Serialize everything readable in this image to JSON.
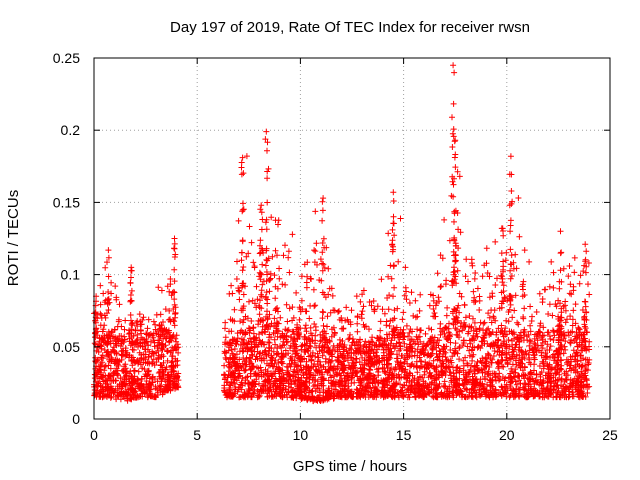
{
  "chart_data": {
    "type": "scatter",
    "title": "Day 197 of 2019, Rate Of TEC Index for receiver rwsn",
    "xlabel": "GPS time / hours",
    "ylabel": "ROTI / TECUs",
    "xlim": [
      0,
      25
    ],
    "ylim": [
      0,
      0.25
    ],
    "xticks": [
      0,
      5,
      10,
      15,
      20,
      25
    ],
    "xtick_labels": [
      "0",
      "5",
      "10",
      "15",
      "20",
      "25"
    ],
    "yticks": [
      0,
      0.05,
      0.1,
      0.15,
      0.2,
      0.25
    ],
    "ytick_labels": [
      "0",
      "0.05",
      "0.1",
      "0.15",
      "0.2",
      "0.25"
    ],
    "grid": true,
    "marker": "+",
    "color": "#ff0000",
    "coverage_hours": [
      [
        0.0,
        4.1
      ],
      [
        6.3,
        24.0
      ]
    ],
    "envelope": [
      {
        "x": 0.0,
        "base_low": 0.015,
        "base_high": 0.05,
        "peak": 0.085
      },
      {
        "x": 0.7,
        "base_low": 0.015,
        "base_high": 0.06,
        "peak": 0.117
      },
      {
        "x": 1.5,
        "base_low": 0.012,
        "base_high": 0.05,
        "peak": 0.08
      },
      {
        "x": 2.2,
        "base_low": 0.015,
        "base_high": 0.055,
        "peak": 0.08
      },
      {
        "x": 3.0,
        "base_low": 0.015,
        "base_high": 0.06,
        "peak": 0.09
      },
      {
        "x": 3.8,
        "base_low": 0.02,
        "base_high": 0.06,
        "peak": 0.125
      },
      {
        "x": 4.1,
        "base_low": 0.02,
        "base_high": 0.05,
        "peak": 0.08
      },
      {
        "x": 6.3,
        "base_low": 0.015,
        "base_high": 0.05,
        "peak": 0.08
      },
      {
        "x": 7.3,
        "base_low": 0.015,
        "base_high": 0.06,
        "peak": 0.18
      },
      {
        "x": 8.3,
        "base_low": 0.015,
        "base_high": 0.07,
        "peak": 0.2
      },
      {
        "x": 9.5,
        "base_low": 0.015,
        "base_high": 0.06,
        "peak": 0.145
      },
      {
        "x": 10.8,
        "base_low": 0.012,
        "base_high": 0.06,
        "peak": 0.15
      },
      {
        "x": 12.0,
        "base_low": 0.015,
        "base_high": 0.05,
        "peak": 0.08
      },
      {
        "x": 13.5,
        "base_low": 0.015,
        "base_high": 0.05,
        "peak": 0.1
      },
      {
        "x": 14.5,
        "base_low": 0.015,
        "base_high": 0.06,
        "peak": 0.157
      },
      {
        "x": 16.0,
        "base_low": 0.015,
        "base_high": 0.05,
        "peak": 0.08
      },
      {
        "x": 16.8,
        "base_low": 0.015,
        "base_high": 0.06,
        "peak": 0.15
      },
      {
        "x": 17.5,
        "base_low": 0.015,
        "base_high": 0.07,
        "peak": 0.245
      },
      {
        "x": 18.5,
        "base_low": 0.015,
        "base_high": 0.06,
        "peak": 0.11
      },
      {
        "x": 20.2,
        "base_low": 0.015,
        "base_high": 0.06,
        "peak": 0.182
      },
      {
        "x": 21.5,
        "base_low": 0.015,
        "base_high": 0.06,
        "peak": 0.105
      },
      {
        "x": 22.6,
        "base_low": 0.015,
        "base_high": 0.06,
        "peak": 0.13
      },
      {
        "x": 24.0,
        "base_low": 0.015,
        "base_high": 0.06,
        "peak": 0.12
      }
    ],
    "notable_spikes": [
      {
        "x": 0.1,
        "y": 0.085
      },
      {
        "x": 0.7,
        "y": 0.117
      },
      {
        "x": 1.8,
        "y": 0.105
      },
      {
        "x": 3.9,
        "y": 0.125
      },
      {
        "x": 7.2,
        "y": 0.181
      },
      {
        "x": 8.35,
        "y": 0.199
      },
      {
        "x": 8.1,
        "y": 0.148
      },
      {
        "x": 11.1,
        "y": 0.153
      },
      {
        "x": 14.5,
        "y": 0.157
      },
      {
        "x": 17.4,
        "y": 0.245
      },
      {
        "x": 17.5,
        "y": 0.193
      },
      {
        "x": 20.2,
        "y": 0.182
      },
      {
        "x": 19.8,
        "y": 0.132
      },
      {
        "x": 22.6,
        "y": 0.13
      },
      {
        "x": 23.8,
        "y": 0.121
      }
    ]
  }
}
